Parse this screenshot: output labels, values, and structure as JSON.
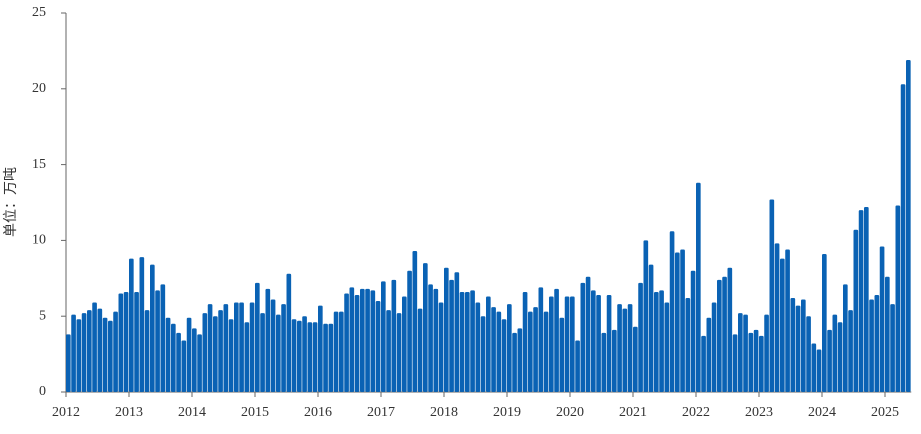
{
  "chart_data": {
    "type": "bar",
    "y_label": "单位：万吨",
    "color": "#0a62b4",
    "categories": [
      "2012",
      null,
      null,
      null,
      null,
      null,
      null,
      null,
      null,
      null,
      null,
      null,
      "2013",
      null,
      null,
      null,
      null,
      null,
      null,
      null,
      null,
      null,
      null,
      null,
      "2014",
      null,
      null,
      null,
      null,
      null,
      null,
      null,
      null,
      null,
      null,
      null,
      "2015",
      null,
      null,
      null,
      null,
      null,
      null,
      null,
      null,
      null,
      null,
      null,
      "2016",
      null,
      null,
      null,
      null,
      null,
      null,
      null,
      null,
      null,
      null,
      null,
      "2017",
      null,
      null,
      null,
      null,
      null,
      null,
      null,
      null,
      null,
      null,
      null,
      "2018",
      null,
      null,
      null,
      null,
      null,
      null,
      null,
      null,
      null,
      null,
      null,
      "2019",
      null,
      null,
      null,
      null,
      null,
      null,
      null,
      null,
      null,
      null,
      null,
      "2020",
      null,
      null,
      null,
      null,
      null,
      null,
      null,
      null,
      null,
      null,
      null,
      "2021",
      null,
      null,
      null,
      null,
      null,
      null,
      null,
      null,
      null,
      null,
      null,
      "2022",
      null,
      null,
      null,
      null,
      null,
      null,
      null,
      null,
      null,
      null,
      null,
      "2023",
      null,
      null,
      null,
      null,
      null,
      null,
      null,
      null,
      null,
      null,
      null,
      "2024",
      null,
      null,
      null,
      null,
      null,
      null,
      null,
      null,
      null,
      null,
      null,
      "2025",
      null,
      null,
      null,
      null
    ],
    "values": [
      3.8,
      5.1,
      4.8,
      5.2,
      5.4,
      5.9,
      5.5,
      4.9,
      4.7,
      5.3,
      6.5,
      6.6,
      8.8,
      6.6,
      8.9,
      5.4,
      8.4,
      6.7,
      7.1,
      4.9,
      4.5,
      3.9,
      3.4,
      4.9,
      4.2,
      3.8,
      5.2,
      5.8,
      5.0,
      5.4,
      5.8,
      4.8,
      5.9,
      5.9,
      4.6,
      5.9,
      7.2,
      5.2,
      6.8,
      6.1,
      5.1,
      5.8,
      7.8,
      4.8,
      4.7,
      5.0,
      4.6,
      4.6,
      5.7,
      4.5,
      4.5,
      5.3,
      5.3,
      6.5,
      6.9,
      6.4,
      6.8,
      6.8,
      6.7,
      6.0,
      7.3,
      5.4,
      7.4,
      5.2,
      6.3,
      8.0,
      9.3,
      5.5,
      8.5,
      7.1,
      6.8,
      5.9,
      8.2,
      7.4,
      7.9,
      6.6,
      6.6,
      6.7,
      5.9,
      5.0,
      6.3,
      5.6,
      5.3,
      4.8,
      5.8,
      3.9,
      4.2,
      6.6,
      5.3,
      5.6,
      6.9,
      5.3,
      6.3,
      6.8,
      4.9,
      6.3,
      6.3,
      3.4,
      7.2,
      7.6,
      6.7,
      6.4,
      3.9,
      6.4,
      4.1,
      5.8,
      5.5,
      5.8,
      4.3,
      7.2,
      10.0,
      8.4,
      6.6,
      6.7,
      5.9,
      10.6,
      9.2,
      9.4,
      6.2,
      8.0,
      13.8,
      3.7,
      4.9,
      5.9,
      7.4,
      7.6,
      8.2,
      3.8,
      5.2,
      5.1,
      3.9,
      4.1,
      3.7,
      5.1,
      12.7,
      9.8,
      8.8,
      9.4,
      6.2,
      5.7,
      6.1,
      5.0,
      3.2,
      2.8,
      9.1,
      4.1,
      5.1,
      4.6,
      7.1,
      5.4,
      10.7,
      12.0,
      12.2,
      6.1,
      6.4,
      9.6,
      7.6,
      5.8,
      12.3,
      20.3,
      21.9
    ],
    "ylim": [
      0,
      25
    ],
    "yticks": [
      0,
      5,
      10,
      15,
      20,
      25
    ],
    "grid": false
  }
}
